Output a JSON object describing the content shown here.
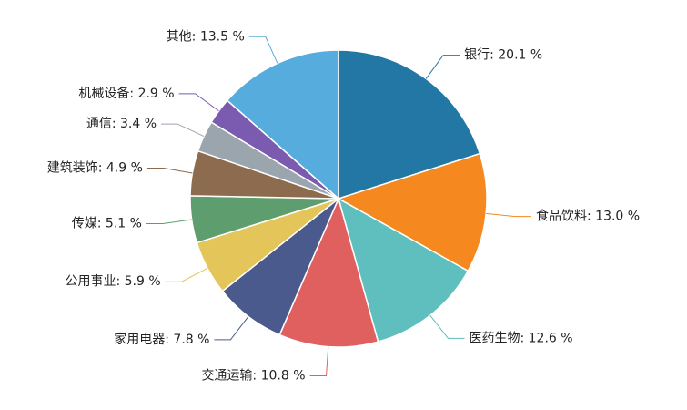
{
  "chart_data": {
    "type": "pie",
    "values": [
      20.1,
      13.0,
      12.6,
      10.8,
      7.8,
      5.9,
      5.1,
      4.9,
      3.4,
      2.9,
      13.5
    ],
    "value_labels": [
      "银行: 20.1 %",
      "食品饮料: 13.0 %",
      "医药生物: 12.6 %",
      "交通运输: 10.8 %",
      "家用电器: 7.8 %",
      "公用事业: 5.9 %",
      "传媒: 5.1 %",
      "建筑装饰: 4.9 %",
      "通信: 3.4 %",
      "机械设备: 2.9 %",
      "其他: 13.5 %"
    ],
    "colors": [
      "#2277a4",
      "#f5891f",
      "#5fbfbe",
      "#e05f5f",
      "#4b5a8c",
      "#e3c559",
      "#5e9e6e",
      "#8d6b4e",
      "#9aa5ae",
      "#7b5bb0",
      "#56addd"
    ]
  }
}
